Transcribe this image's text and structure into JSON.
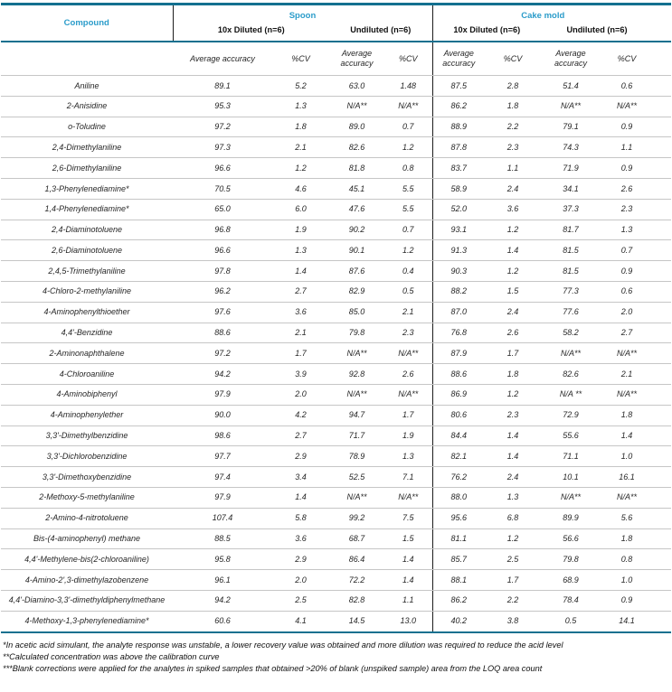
{
  "colors": {
    "accent": "#2b9cca",
    "rule": "#13708f",
    "divider": "#1c1c1c",
    "rowline": "#c6c6c6",
    "ink": "#262626"
  },
  "header": {
    "compound_label": "Compound",
    "groups": [
      {
        "label": "Spoon",
        "subgroups": [
          "10x Diluted (n=6)",
          "Undiluted (n=6)"
        ]
      },
      {
        "label": "Cake mold",
        "subgroups": [
          "10x Diluted (n=6)",
          "Undiluted (n=6)"
        ]
      }
    ],
    "metric_labels": {
      "avg": "Average accuracy",
      "cv": "%CV"
    }
  },
  "rows": [
    {
      "compound": "Aniline",
      "values": [
        "89.1",
        "5.2",
        "63.0",
        "1.48",
        "87.5",
        "2.8",
        "51.4",
        "0.6"
      ]
    },
    {
      "compound": "2-Anisidine",
      "values": [
        "95.3",
        "1.3",
        "N/A**",
        "N/A**",
        "86.2",
        "1.8",
        "N/A**",
        "N/A**"
      ]
    },
    {
      "compound": "o-Toludine",
      "values": [
        "97.2",
        "1.8",
        "89.0",
        "0.7",
        "88.9",
        "2.2",
        "79.1",
        "0.9"
      ]
    },
    {
      "compound": "2,4-Dimethylaniline",
      "values": [
        "97.3",
        "2.1",
        "82.6",
        "1.2",
        "87.8",
        "2.3",
        "74.3",
        "1.1"
      ]
    },
    {
      "compound": "2,6-Dimethylaniline",
      "values": [
        "96.6",
        "1.2",
        "81.8",
        "0.8",
        "83.7",
        "1.1",
        "71.9",
        "0.9"
      ]
    },
    {
      "compound": "1,3-Phenylenediamine*",
      "values": [
        "70.5",
        "4.6",
        "45.1",
        "5.5",
        "58.9",
        "2.4",
        "34.1",
        "2.6"
      ]
    },
    {
      "compound": "1,4-Phenylenediamine*",
      "values": [
        "65.0",
        "6.0",
        "47.6",
        "5.5",
        "52.0",
        "3.6",
        "37.3",
        "2.3"
      ]
    },
    {
      "compound": "2,4-Diaminotoluene",
      "values": [
        "96.8",
        "1.9",
        "90.2",
        "0.7",
        "93.1",
        "1.2",
        "81.7",
        "1.3"
      ]
    },
    {
      "compound": "2,6-Diaminotoluene",
      "values": [
        "96.6",
        "1.3",
        "90.1",
        "1.2",
        "91.3",
        "1.4",
        "81.5",
        "0.7"
      ]
    },
    {
      "compound": "2,4,5-Trimethylaniline",
      "values": [
        "97.8",
        "1.4",
        "87.6",
        "0.4",
        "90.3",
        "1.2",
        "81.5",
        "0.9"
      ]
    },
    {
      "compound": "4-Chloro-2-methylaniline",
      "values": [
        "96.2",
        "2.7",
        "82.9",
        "0.5",
        "88.2",
        "1.5",
        "77.3",
        "0.6"
      ]
    },
    {
      "compound": "4-Aminophenylthioether",
      "values": [
        "97.6",
        "3.6",
        "85.0",
        "2.1",
        "87.0",
        "2.4",
        "77.6",
        "2.0"
      ]
    },
    {
      "compound": "4,4'-Benzidine",
      "values": [
        "88.6",
        "2.1",
        "79.8",
        "2.3",
        "76.8",
        "2.6",
        "58.2",
        "2.7"
      ]
    },
    {
      "compound": "2-Aminonaphthalene",
      "values": [
        "97.2",
        "1.7",
        "N/A**",
        "N/A**",
        "87.9",
        "1.7",
        "N/A**",
        "N/A**"
      ]
    },
    {
      "compound": "4-Chloroaniline",
      "values": [
        "94.2",
        "3.9",
        "92.8",
        "2.6",
        "88.6",
        "1.8",
        "82.6",
        "2.1"
      ]
    },
    {
      "compound": "4-Aminobiphenyl",
      "values": [
        "97.9",
        "2.0",
        "N/A**",
        "N/A**",
        "86.9",
        "1.2",
        "N/A **",
        "N/A**"
      ]
    },
    {
      "compound": "4-Aminophenylether",
      "values": [
        "90.0",
        "4.2",
        "94.7",
        "1.7",
        "80.6",
        "2.3",
        "72.9",
        "1.8"
      ]
    },
    {
      "compound": "3,3'-Dimethylbenzidine",
      "values": [
        "98.6",
        "2.7",
        "71.7",
        "1.9",
        "84.4",
        "1.4",
        "55.6",
        "1.4"
      ]
    },
    {
      "compound": "3,3'-Dichlorobenzidine",
      "values": [
        "97.7",
        "2.9",
        "78.9",
        "1.3",
        "82.1",
        "1.4",
        "71.1",
        "1.0"
      ]
    },
    {
      "compound": "3,3'-Dimethoxybenzidine",
      "values": [
        "97.4",
        "3.4",
        "52.5",
        "7.1",
        "76.2",
        "2.4",
        "10.1",
        "16.1"
      ]
    },
    {
      "compound": "2-Methoxy-5-methylaniline",
      "values": [
        "97.9",
        "1.4",
        "N/A**",
        "N/A**",
        "88.0",
        "1.3",
        "N/A**",
        "N/A**"
      ]
    },
    {
      "compound": "2-Amino-4-nitrotoluene",
      "values": [
        "107.4",
        "5.8",
        "99.2",
        "7.5",
        "95.6",
        "6.8",
        "89.9",
        "5.6"
      ]
    },
    {
      "compound": "Bis-(4-aminophenyl) methane",
      "values": [
        "88.5",
        "3.6",
        "68.7",
        "1.5",
        "81.1",
        "1.2",
        "56.6",
        "1.8"
      ]
    },
    {
      "compound": "4,4'-Methylene-bis(2-chloroaniline)",
      "values": [
        "95.8",
        "2.9",
        "86.4",
        "1.4",
        "85.7",
        "2.5",
        "79.8",
        "0.8"
      ]
    },
    {
      "compound": "4-Amino-2',3-dimethylazobenzene",
      "values": [
        "96.1",
        "2.0",
        "72.2",
        "1.4",
        "88.1",
        "1.7",
        "68.9",
        "1.0"
      ]
    },
    {
      "compound": "4,4'-Diamino-3,3'-dimethyldiphenylmethane",
      "values": [
        "94.2",
        "2.5",
        "82.8",
        "1.1",
        "86.2",
        "2.2",
        "78.4",
        "0.9"
      ]
    },
    {
      "compound": "4-Methoxy-1,3-phenylenediamine*",
      "values": [
        "60.6",
        "4.1",
        "14.5",
        "13.0",
        "40.2",
        "3.8",
        "0.5",
        "14.1"
      ]
    }
  ],
  "footnotes": [
    "*In acetic acid simulant, the analyte response was unstable, a lower recovery value was obtained and more dilution was required to reduce the acid level",
    "**Calculated concentration was above the calibration curve",
    "***Blank corrections were applied for the analytes in spiked samples that obtained >20% of blank (unspiked sample) area from the LOQ area count"
  ]
}
